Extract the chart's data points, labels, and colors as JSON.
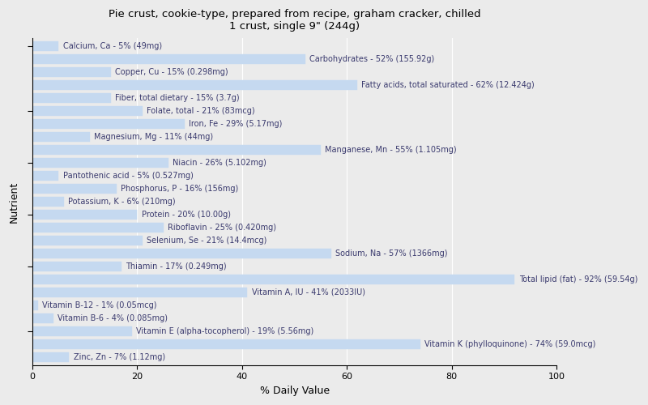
{
  "title": "Pie crust, cookie-type, prepared from recipe, graham cracker, chilled\n1 crust, single 9\" (244g)",
  "xlabel": "% Daily Value",
  "ylabel": "Nutrient",
  "xlim": [
    0,
    100
  ],
  "xticks": [
    0,
    20,
    40,
    60,
    80,
    100
  ],
  "background_color": "#ebebeb",
  "bar_color": "#c5d9f0",
  "bar_edge_color": "#c5d9f0",
  "label_color": "#3a3a6e",
  "nutrients": [
    {
      "label": "Calcium, Ca - 5% (49mg)",
      "value": 5
    },
    {
      "label": "Carbohydrates - 52% (155.92g)",
      "value": 52
    },
    {
      "label": "Copper, Cu - 15% (0.298mg)",
      "value": 15
    },
    {
      "label": "Fatty acids, total saturated - 62% (12.424g)",
      "value": 62
    },
    {
      "label": "Fiber, total dietary - 15% (3.7g)",
      "value": 15
    },
    {
      "label": "Folate, total - 21% (83mcg)",
      "value": 21
    },
    {
      "label": "Iron, Fe - 29% (5.17mg)",
      "value": 29
    },
    {
      "label": "Magnesium, Mg - 11% (44mg)",
      "value": 11
    },
    {
      "label": "Manganese, Mn - 55% (1.105mg)",
      "value": 55
    },
    {
      "label": "Niacin - 26% (5.102mg)",
      "value": 26
    },
    {
      "label": "Pantothenic acid - 5% (0.527mg)",
      "value": 5
    },
    {
      "label": "Phosphorus, P - 16% (156mg)",
      "value": 16
    },
    {
      "label": "Potassium, K - 6% (210mg)",
      "value": 6
    },
    {
      "label": "Protein - 20% (10.00g)",
      "value": 20
    },
    {
      "label": "Riboflavin - 25% (0.420mg)",
      "value": 25
    },
    {
      "label": "Selenium, Se - 21% (14.4mcg)",
      "value": 21
    },
    {
      "label": "Sodium, Na - 57% (1366mg)",
      "value": 57
    },
    {
      "label": "Thiamin - 17% (0.249mg)",
      "value": 17
    },
    {
      "label": "Total lipid (fat) - 92% (59.54g)",
      "value": 92
    },
    {
      "label": "Vitamin A, IU - 41% (2033IU)",
      "value": 41
    },
    {
      "label": "Vitamin B-12 - 1% (0.05mcg)",
      "value": 1
    },
    {
      "label": "Vitamin B-6 - 4% (0.085mg)",
      "value": 4
    },
    {
      "label": "Vitamin E (alpha-tocopherol) - 19% (5.56mg)",
      "value": 19
    },
    {
      "label": "Vitamin K (phylloquinone) - 74% (59.0mcg)",
      "value": 74
    },
    {
      "label": "Zinc, Zn - 7% (1.12mg)",
      "value": 7
    }
  ],
  "ytick_positions": [
    2,
    7,
    11,
    15,
    19,
    23
  ],
  "font_size": 7.0,
  "title_fontsize": 9.5,
  "xlabel_fontsize": 9,
  "ylabel_fontsize": 9
}
